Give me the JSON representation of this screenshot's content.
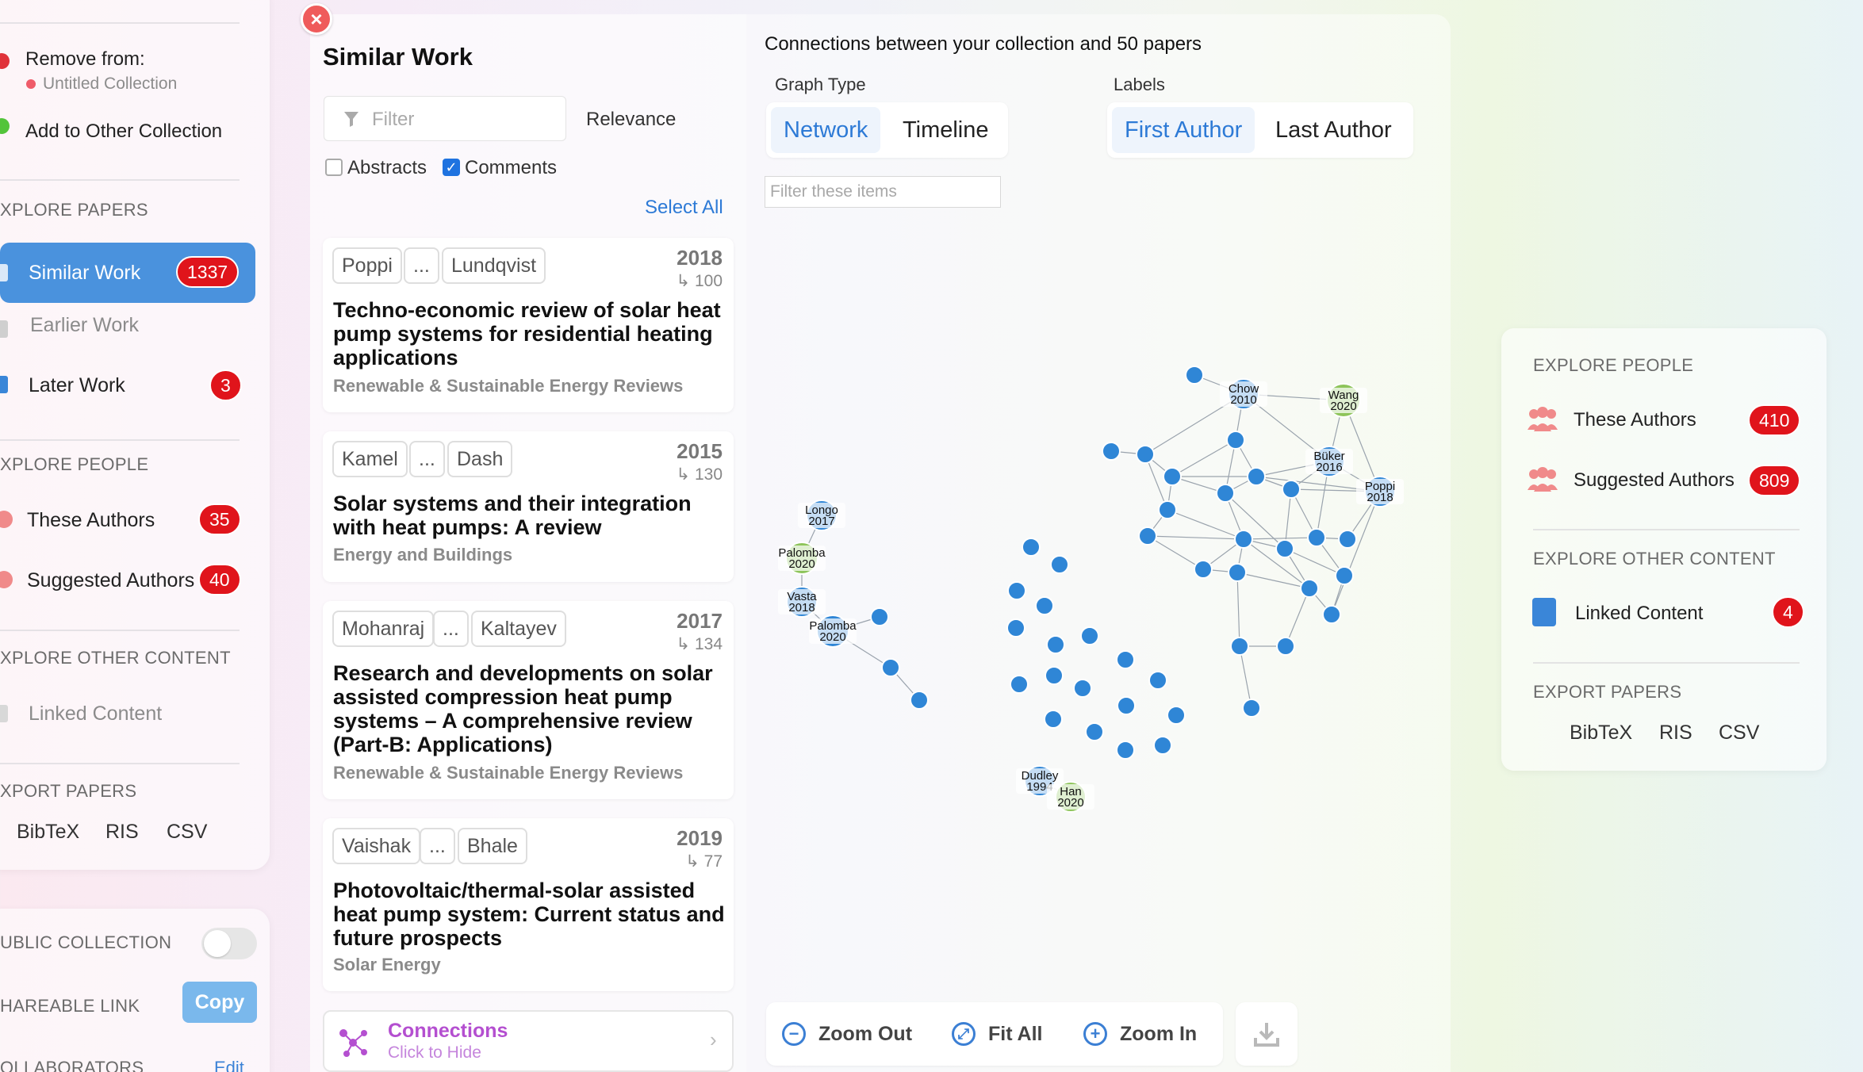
{
  "left_sidebar": {
    "remove_from_label": "Remove from:",
    "collection_name": "Untitled Collection",
    "add_to_other_label": "Add to Other Collection",
    "explore_papers_head": "XPLORE PAPERS",
    "similar_work": {
      "label": "Similar Work",
      "count": "1337"
    },
    "earlier_work": {
      "label": "Earlier Work"
    },
    "later_work": {
      "label": "Later Work",
      "count": "3"
    },
    "explore_people_head": "XPLORE PEOPLE",
    "these_authors": {
      "label": "These Authors",
      "count": "35"
    },
    "suggested_authors": {
      "label": "Suggested Authors",
      "count": "40"
    },
    "explore_other_head": "XPLORE OTHER CONTENT",
    "linked_content": {
      "label": "Linked Content"
    },
    "export_head": "XPORT PAPERS",
    "export": [
      "BibTeX",
      "RIS",
      "CSV"
    ],
    "public_collection_label": "UBLIC COLLECTION",
    "shareable_link_label": "HAREABLE LINK",
    "copy_label": "Copy",
    "collaborators_label": "OLLABORATORS",
    "edit_label": "Edit"
  },
  "similar_panel": {
    "title": "Similar Work",
    "filter_placeholder": "Filter",
    "sort_label": "Relevance",
    "abstracts_label": "Abstracts",
    "comments_label": "Comments",
    "select_all": "Select All",
    "papers": [
      {
        "first_author": "Poppi",
        "ellipsis": "...",
        "last_author": "Lundqvist",
        "year": "2018",
        "cites": "↳ 100",
        "title": "Techno-economic review of solar heat pump systems for residential heating applications",
        "journal": "Renewable & Sustainable Energy Reviews"
      },
      {
        "first_author": "Kamel",
        "ellipsis": "...",
        "last_author": "Dash",
        "year": "2015",
        "cites": "↳ 130",
        "title": "Solar systems and their integration with heat pumps: A review",
        "journal": "Energy and Buildings"
      },
      {
        "first_author": "Mohanraj",
        "ellipsis": "...",
        "last_author": "Kaltayev",
        "year": "2017",
        "cites": "↳ 134",
        "title": "Research and developments on solar assisted compression heat pump systems – A comprehensive review (Part-B: Applications)",
        "journal": "Renewable & Sustainable Energy Reviews"
      },
      {
        "first_author": "Vaishak",
        "ellipsis": "...",
        "last_author": "Bhale",
        "year": "2019",
        "cites": "↳ 77",
        "title": "Photovoltaic/thermal-solar assisted heat pump system: Current status and future prospects",
        "journal": "Solar Energy"
      }
    ],
    "connections_label": "Connections",
    "connections_sub": "Click to Hide"
  },
  "graph": {
    "heading": "Connections between your collection and 50 papers",
    "graph_type_label": "Graph Type",
    "graph_type_options": [
      "Network",
      "Timeline"
    ],
    "labels_label": "Labels",
    "labels_options": [
      "First Author",
      "Last Author"
    ],
    "filter_placeholder": "Filter these items",
    "zoom_out": "Zoom Out",
    "fit_all": "Fit All",
    "zoom_in": "Zoom In",
    "node_labels": {
      "chow": "Chow 2010",
      "wang": "Wang 2020",
      "buker": "Büker 2016",
      "poppi": "Poppi 2018",
      "longo": "Longo 2017",
      "palomba1": "Palomba 2020",
      "vasta": "Vasta 2018",
      "palomba2": "Palomba 2020",
      "dudley": "Dudley 1994",
      "han": "Han 2020"
    },
    "colors": {
      "blue_node": "#2f86d6",
      "green_node": "#8dc45a",
      "edge": "#9aa3ad"
    }
  },
  "right_card": {
    "explore_people_head": "EXPLORE PEOPLE",
    "these_authors": {
      "label": "These Authors",
      "count": "410"
    },
    "suggested_authors": {
      "label": "Suggested Authors",
      "count": "809"
    },
    "explore_other_head": "EXPLORE OTHER CONTENT",
    "linked_content": {
      "label": "Linked Content",
      "count": "4"
    },
    "export_head": "EXPORT PAPERS",
    "export": [
      "BibTeX",
      "RIS",
      "CSV"
    ]
  }
}
